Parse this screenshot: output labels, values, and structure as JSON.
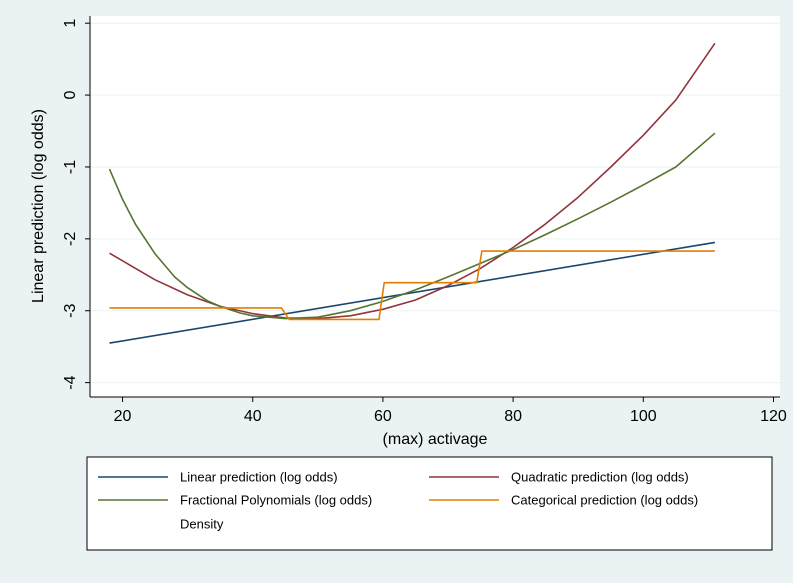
{
  "chart_data": {
    "type": "line",
    "xlabel": "(max) activage",
    "ylabel": "Linear prediction (log odds)",
    "xlim": [
      15,
      121
    ],
    "ylim": [
      -4.2,
      1.1
    ],
    "xticks": [
      20,
      40,
      60,
      80,
      100,
      120
    ],
    "yticks": [
      -4,
      -3,
      -2,
      -1,
      0,
      1
    ],
    "grid": "horizontal",
    "legend_position": "bottom",
    "series": [
      {
        "name": "Linear prediction (log odds)",
        "color": "#1a476f",
        "x": [
          18,
          111
        ],
        "y": [
          -3.45,
          -2.05
        ]
      },
      {
        "name": "Quadratic prediction (log odds)",
        "color": "#90353b",
        "x": [
          18,
          25,
          30,
          35,
          40,
          45,
          50,
          55,
          60,
          65,
          70,
          75,
          80,
          85,
          90,
          95,
          100,
          105,
          111
        ],
        "y": [
          -2.2,
          -2.57,
          -2.78,
          -2.94,
          -3.04,
          -3.1,
          -3.11,
          -3.07,
          -2.98,
          -2.85,
          -2.65,
          -2.41,
          -2.12,
          -1.79,
          -1.42,
          -1.0,
          -0.56,
          -0.07,
          0.72
        ]
      },
      {
        "name": "Fractional Polynomials (log odds)",
        "color": "#55752f",
        "x": [
          18,
          20,
          22,
          25,
          28,
          30,
          33,
          35,
          38,
          40,
          45,
          50,
          55,
          60,
          65,
          70,
          75,
          80,
          85,
          90,
          95,
          100,
          105,
          111
        ],
        "y": [
          -1.03,
          -1.45,
          -1.8,
          -2.21,
          -2.53,
          -2.68,
          -2.86,
          -2.94,
          -3.03,
          -3.07,
          -3.11,
          -3.09,
          -3.0,
          -2.87,
          -2.71,
          -2.53,
          -2.34,
          -2.15,
          -1.94,
          -1.72,
          -1.49,
          -1.25,
          -1.0,
          -0.53
        ]
      },
      {
        "name": "Categorical prediction (log odds)",
        "color": "#e37e00",
        "x": [
          18,
          44.4,
          45.6,
          59.4,
          60.2,
          74.4,
          75.2,
          111
        ],
        "y": [
          -2.96,
          -2.96,
          -3.12,
          -3.12,
          -2.61,
          -2.61,
          -2.17,
          -2.17
        ]
      },
      {
        "name": "Density",
        "color": "",
        "x": [],
        "y": []
      }
    ]
  }
}
